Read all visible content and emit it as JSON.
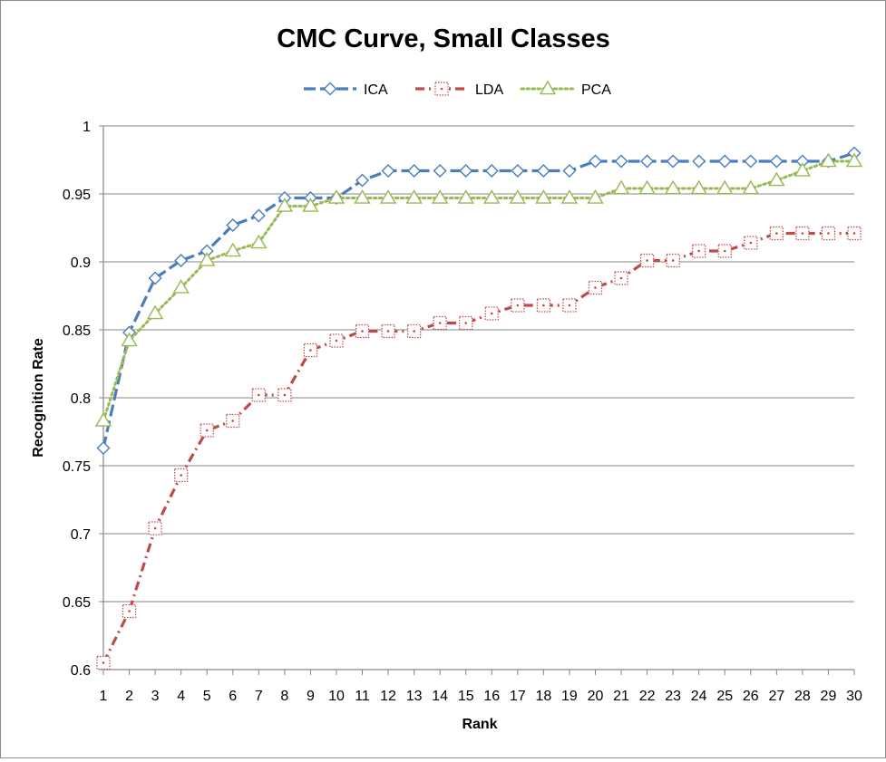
{
  "chart_data": {
    "type": "line",
    "title": "CMC Curve, Small Classes",
    "xlabel": "Rank",
    "ylabel": "Recognition Rate",
    "x": [
      1,
      2,
      3,
      4,
      5,
      6,
      7,
      8,
      9,
      10,
      11,
      12,
      13,
      14,
      15,
      16,
      17,
      18,
      19,
      20,
      21,
      22,
      23,
      24,
      25,
      26,
      27,
      28,
      29,
      30
    ],
    "x_tick_labels": [
      "1",
      "2",
      "3",
      "4",
      "5",
      "6",
      "7",
      "8",
      "9",
      "10",
      "11",
      "12",
      "13",
      "14",
      "15",
      "16",
      "17",
      "18",
      "19",
      "20",
      "21",
      "22",
      "23",
      "24",
      "25",
      "26",
      "27",
      "28",
      "29",
      "30"
    ],
    "y_tick_labels": [
      "0.6",
      "0.65",
      "0.7",
      "0.75",
      "0.8",
      "0.85",
      "0.9",
      "0.95",
      "1"
    ],
    "ylim": [
      0.6,
      1.0
    ],
    "grid": "horizontal",
    "legend_position": "top",
    "series": [
      {
        "name": "ICA",
        "color": "#4a7ebb",
        "line_style": "dashed",
        "marker": "diamond",
        "values": [
          0.763,
          0.848,
          0.888,
          0.901,
          0.908,
          0.927,
          0.934,
          0.947,
          0.947,
          0.947,
          0.96,
          0.967,
          0.967,
          0.967,
          0.967,
          0.967,
          0.967,
          0.967,
          0.967,
          0.974,
          0.974,
          0.974,
          0.974,
          0.974,
          0.974,
          0.974,
          0.974,
          0.974,
          0.974,
          0.98
        ]
      },
      {
        "name": "LDA",
        "color": "#be4b48",
        "line_style": "dash-dot",
        "marker": "square",
        "values": [
          0.605,
          0.643,
          0.704,
          0.743,
          0.776,
          0.783,
          0.802,
          0.802,
          0.835,
          0.842,
          0.849,
          0.849,
          0.849,
          0.855,
          0.855,
          0.862,
          0.868,
          0.868,
          0.868,
          0.881,
          0.888,
          0.901,
          0.901,
          0.908,
          0.908,
          0.914,
          0.921,
          0.921,
          0.921,
          0.921
        ]
      },
      {
        "name": "PCA",
        "color": "#98b954",
        "line_style": "dotted",
        "marker": "triangle",
        "values": [
          0.783,
          0.842,
          0.862,
          0.881,
          0.901,
          0.908,
          0.914,
          0.941,
          0.941,
          0.947,
          0.947,
          0.947,
          0.947,
          0.947,
          0.947,
          0.947,
          0.947,
          0.947,
          0.947,
          0.947,
          0.954,
          0.954,
          0.954,
          0.954,
          0.954,
          0.954,
          0.96,
          0.967,
          0.974,
          0.974
        ]
      }
    ]
  }
}
